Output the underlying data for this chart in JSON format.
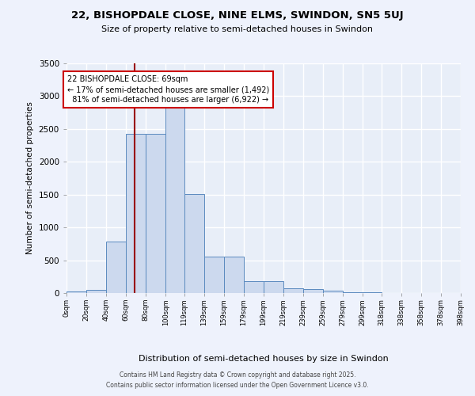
{
  "title": "22, BISHOPDALE CLOSE, NINE ELMS, SWINDON, SN5 5UJ",
  "subtitle": "Size of property relative to semi-detached houses in Swindon",
  "xlabel": "Distribution of semi-detached houses by size in Swindon",
  "ylabel": "Number of semi-detached properties",
  "property_label": "22 BISHOPDALE CLOSE: 69sqm",
  "pct_smaller": 17,
  "pct_larger": 81,
  "n_smaller": 1492,
  "n_larger": 6922,
  "bin_edges": [
    0,
    20,
    40,
    60,
    80,
    100,
    119,
    139,
    159,
    179,
    199,
    219,
    239,
    259,
    279,
    299,
    318,
    338,
    358,
    378,
    398
  ],
  "bin_labels": [
    "0sqm",
    "20sqm",
    "40sqm",
    "60sqm",
    "80sqm",
    "100sqm",
    "119sqm",
    "139sqm",
    "159sqm",
    "179sqm",
    "199sqm",
    "219sqm",
    "239sqm",
    "259sqm",
    "279sqm",
    "299sqm",
    "318sqm",
    "338sqm",
    "358sqm",
    "378sqm",
    "398sqm"
  ],
  "bar_heights": [
    30,
    50,
    790,
    2430,
    2430,
    2900,
    1510,
    550,
    550,
    185,
    185,
    75,
    55,
    35,
    10,
    10,
    5,
    5,
    5,
    5
  ],
  "bar_color": "#ccd9ee",
  "bar_edge_color": "#5b8abf",
  "vline_color": "#990000",
  "vline_x": 69,
  "ylim_max": 3500,
  "yticks": [
    0,
    500,
    1000,
    1500,
    2000,
    2500,
    3000,
    3500
  ],
  "plot_bg": "#e8eef8",
  "fig_bg": "#eef2fc",
  "grid_color": "#ffffff",
  "ann_box_edge": "#cc0000",
  "footer_line1": "Contains HM Land Registry data © Crown copyright and database right 2025.",
  "footer_line2": "Contains public sector information licensed under the Open Government Licence v3.0."
}
